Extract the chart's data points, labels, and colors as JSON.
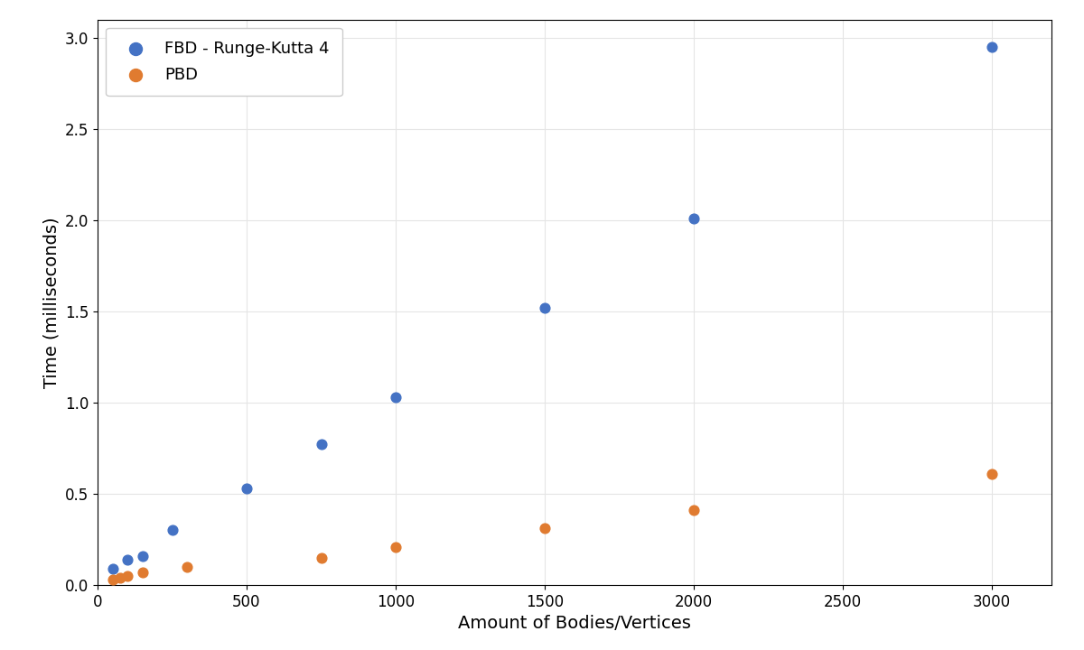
{
  "fbd_x": [
    50,
    100,
    150,
    250,
    500,
    750,
    1000,
    1500,
    2000,
    3000
  ],
  "fbd_y": [
    0.09,
    0.14,
    0.16,
    0.3,
    0.53,
    0.77,
    1.03,
    1.52,
    2.01,
    2.95
  ],
  "pbd_x": [
    50,
    75,
    100,
    150,
    300,
    750,
    1000,
    1500,
    2000,
    3000
  ],
  "pbd_y": [
    0.03,
    0.04,
    0.05,
    0.07,
    0.1,
    0.15,
    0.21,
    0.31,
    0.41,
    0.61
  ],
  "fbd_color": "#4472c4",
  "pbd_color": "#e07b30",
  "fbd_label": "FBD - Runge-Kutta 4",
  "pbd_label": "PBD",
  "xlabel": "Amount of Bodies/Vertices",
  "ylabel": "Time (milliseconds)",
  "xlim": [
    0,
    3200
  ],
  "ylim": [
    0.0,
    3.1
  ],
  "yticks": [
    0.0,
    0.5,
    1.0,
    1.5,
    2.0,
    2.5,
    3.0
  ],
  "xticks": [
    0,
    500,
    1000,
    1500,
    2000,
    2500,
    3000
  ],
  "marker_size": 60,
  "grid_color": "#e5e5e5",
  "background_color": "#ffffff",
  "legend_fontsize": 13,
  "axis_fontsize": 14,
  "tick_fontsize": 12
}
